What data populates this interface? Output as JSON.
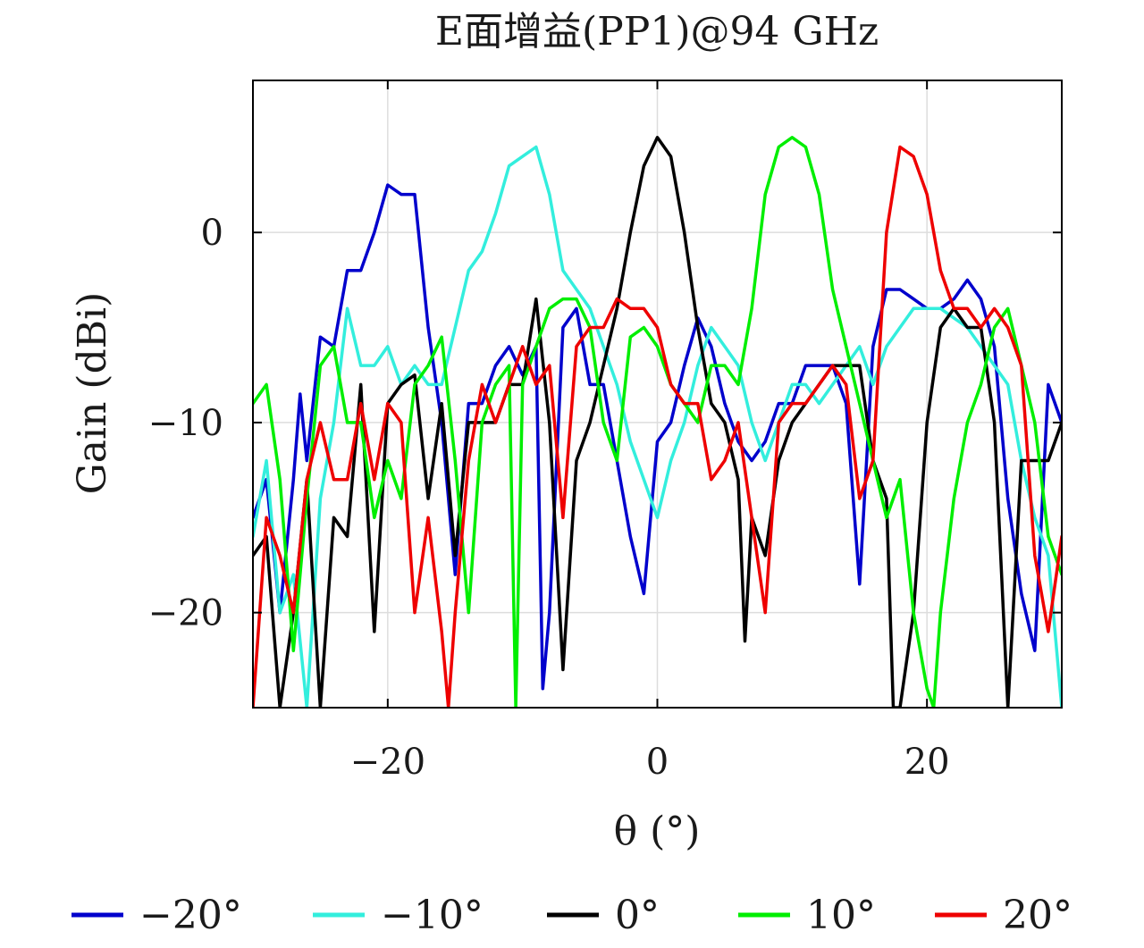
{
  "chart_data": {
    "type": "line",
    "title": "E面增益(PP1)@94 GHz",
    "xlabel": "θ (°)",
    "ylabel": "Gain (dBi)",
    "xlim": [
      -30,
      30
    ],
    "ylim": [
      -25,
      8
    ],
    "xticks": [
      -20,
      0,
      20
    ],
    "yticks": [
      0,
      -10,
      -20
    ],
    "xtick_labels": [
      "−20",
      "0",
      "20"
    ],
    "ytick_labels": [
      "0",
      "−10",
      "−20"
    ],
    "grid": true,
    "legend_position": "bottom",
    "series": [
      {
        "name": "−20°",
        "color": "#0000cc",
        "x": [
          -30,
          -29,
          -28,
          -27,
          -26.5,
          -26,
          -25,
          -24,
          -23,
          -22,
          -21,
          -20,
          -19,
          -18,
          -17,
          -16,
          -15,
          -14,
          -13,
          -12,
          -11,
          -10,
          -9,
          -8.5,
          -8,
          -7,
          -6,
          -5,
          -4,
          -3,
          -2,
          -1,
          0,
          1,
          2,
          3,
          4,
          5,
          6,
          7,
          8,
          9,
          10,
          11,
          12,
          13,
          14,
          15,
          16,
          17,
          18,
          19,
          20,
          21,
          22,
          23,
          24,
          25,
          26,
          27,
          28,
          29,
          30
        ],
        "y": [
          -15,
          -13,
          -20,
          -13,
          -8.5,
          -12,
          -5.5,
          -6,
          -2,
          -2,
          0,
          2.5,
          2,
          2,
          -5,
          -10,
          -18,
          -9,
          -9,
          -7,
          -6,
          -7.5,
          -6,
          -24,
          -20,
          -5,
          -4,
          -8,
          -8,
          -12,
          -16,
          -19,
          -11,
          -10,
          -7,
          -4.5,
          -6,
          -9,
          -11,
          -12,
          -11,
          -9,
          -9,
          -7,
          -7,
          -7,
          -9,
          -18.5,
          -6,
          -3,
          -3,
          -3.5,
          -4,
          -4,
          -3.5,
          -2.5,
          -3.5,
          -6,
          -14,
          -19,
          -22,
          -8,
          -10
        ]
      },
      {
        "name": "−10°",
        "color": "#33eedd",
        "x": [
          -30,
          -29,
          -28,
          -27,
          -26,
          -25,
          -24,
          -23,
          -22,
          -21,
          -20,
          -19,
          -18,
          -17,
          -16,
          -15,
          -14,
          -13,
          -12,
          -11,
          -10,
          -9,
          -8,
          -7,
          -6,
          -5,
          -4,
          -3,
          -2,
          -1,
          0,
          1,
          2,
          3,
          4,
          5,
          6,
          7,
          8,
          9,
          10,
          11,
          12,
          13,
          14,
          15,
          16,
          17,
          18,
          19,
          20,
          21,
          22,
          23,
          24,
          25,
          26,
          27,
          28,
          29,
          30
        ],
        "y": [
          -16,
          -12,
          -20,
          -18,
          -25,
          -14,
          -10,
          -4,
          -7,
          -7,
          -6,
          -8,
          -7,
          -8,
          -8,
          -5,
          -2,
          -1,
          1,
          3.5,
          4,
          4.5,
          2,
          -2,
          -3,
          -4,
          -6,
          -8,
          -11,
          -13,
          -15,
          -12,
          -10,
          -7,
          -5,
          -6,
          -7,
          -10,
          -12,
          -10,
          -8,
          -8,
          -9,
          -8,
          -7,
          -6,
          -8,
          -6,
          -5,
          -4,
          -4,
          -4,
          -4.5,
          -5,
          -6,
          -7,
          -8,
          -12,
          -15,
          -17,
          -25
        ]
      },
      {
        "name": "0°",
        "color": "#000000",
        "x": [
          -30,
          -29,
          -28,
          -27,
          -26,
          -25,
          -24,
          -23,
          -22,
          -21,
          -20,
          -19,
          -18,
          -17,
          -16,
          -15,
          -14,
          -13,
          -12,
          -11,
          -10,
          -9,
          -8,
          -7,
          -6,
          -5,
          -4,
          -3,
          -2,
          -1,
          0,
          1,
          2,
          3,
          4,
          5,
          6,
          6.5,
          7,
          8,
          9,
          10,
          11,
          12,
          13,
          14,
          15,
          16,
          17,
          17.5,
          18,
          19,
          20,
          21,
          22,
          23,
          24,
          25,
          26,
          27,
          28,
          29,
          30
        ],
        "y": [
          -17,
          -16,
          -25,
          -20,
          -13,
          -25,
          -15,
          -16,
          -8,
          -21,
          -9,
          -8,
          -7.5,
          -14,
          -9,
          -17,
          -10,
          -10,
          -10,
          -8,
          -8,
          -3.5,
          -10,
          -23,
          -12,
          -10,
          -7,
          -4,
          0,
          3.5,
          5,
          4,
          0,
          -5,
          -9,
          -10,
          -13,
          -21.5,
          -15,
          -17,
          -12,
          -10,
          -9,
          -8,
          -7,
          -7,
          -7,
          -12,
          -14,
          -25,
          -25,
          -20,
          -10,
          -5,
          -4,
          -5,
          -5,
          -10,
          -25,
          -12,
          -12,
          -12,
          -10
        ]
      },
      {
        "name": "10°",
        "color": "#00ee00",
        "x": [
          -30,
          -29,
          -28,
          -27,
          -26,
          -25,
          -24,
          -23,
          -22,
          -21,
          -20,
          -19,
          -18,
          -17,
          -16,
          -15,
          -14,
          -13,
          -12,
          -11,
          -10.5,
          -10,
          -9,
          -8,
          -7,
          -6,
          -5,
          -4,
          -3,
          -2,
          -1,
          0,
          1,
          2,
          3,
          4,
          5,
          6,
          7,
          8,
          9,
          10,
          11,
          12,
          13,
          14,
          15,
          16,
          17,
          18,
          19,
          20,
          20.5,
          21,
          22,
          23,
          24,
          25,
          26,
          27,
          28,
          29,
          30
        ],
        "y": [
          -9,
          -8,
          -13,
          -22,
          -14,
          -7,
          -6,
          -10,
          -10,
          -15,
          -12,
          -14,
          -8,
          -7,
          -5.5,
          -12,
          -20,
          -10,
          -8,
          -7,
          -25,
          -8,
          -6,
          -4,
          -3.5,
          -3.5,
          -5,
          -10,
          -12,
          -5.5,
          -5,
          -6,
          -8,
          -9,
          -10,
          -7,
          -7,
          -8,
          -4,
          2,
          4.5,
          5,
          4.5,
          2,
          -3,
          -6,
          -9,
          -12,
          -15,
          -13,
          -20,
          -24,
          -25,
          -20,
          -14,
          -10,
          -8,
          -5,
          -4,
          -7,
          -10,
          -16,
          -18
        ]
      },
      {
        "name": "20°",
        "color": "#ee0000",
        "x": [
          -30,
          -29,
          -28,
          -27,
          -26,
          -25,
          -24,
          -23,
          -22,
          -21,
          -20,
          -19,
          -18,
          -17,
          -16,
          -15.5,
          -15,
          -14,
          -13,
          -12,
          -11,
          -10,
          -9,
          -8,
          -7,
          -6,
          -5,
          -4,
          -3,
          -2,
          -1,
          0,
          1,
          2,
          3,
          4,
          5,
          6,
          7,
          8,
          9,
          10,
          11,
          12,
          13,
          14,
          15,
          16,
          17,
          18,
          19,
          20,
          21,
          22,
          23,
          24,
          25,
          26,
          27,
          28,
          29,
          30
        ],
        "y": [
          -25,
          -15,
          -17,
          -20,
          -13,
          -10,
          -13,
          -13,
          -9,
          -13,
          -9,
          -10,
          -20,
          -15,
          -21,
          -25,
          -20,
          -12,
          -8,
          -10,
          -8,
          -6,
          -8,
          -7,
          -15,
          -6,
          -5,
          -5,
          -3.5,
          -4,
          -4,
          -5,
          -8,
          -9,
          -9,
          -13,
          -12,
          -10,
          -15,
          -20,
          -10,
          -9,
          -9,
          -8,
          -7,
          -8,
          -14,
          -12,
          0,
          4.5,
          4,
          2,
          -2,
          -4,
          -4,
          -5,
          -4,
          -5,
          -7,
          -17,
          -21,
          -16
        ]
      }
    ]
  }
}
